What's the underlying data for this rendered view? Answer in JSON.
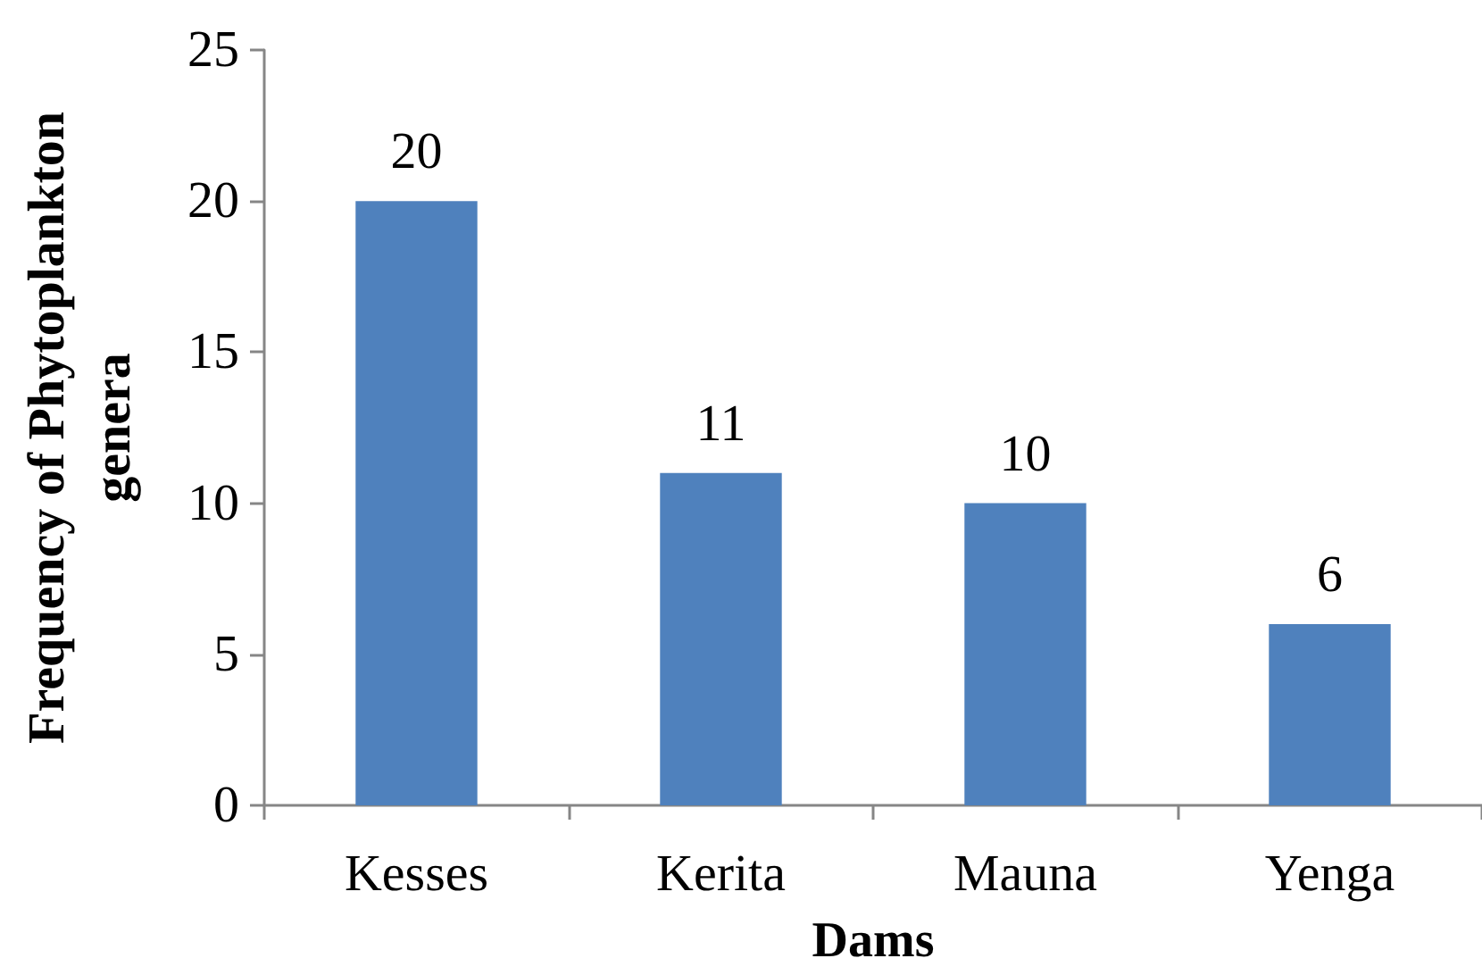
{
  "chart_data": {
    "type": "bar",
    "xlabel": "Dams",
    "ylabel": "Frequency of Phytoplankton genera",
    "categories": [
      "Kesses",
      "Kerita",
      "Mauna",
      "Yenga"
    ],
    "values": [
      20,
      11,
      10,
      6
    ],
    "color": "#4f81bd",
    "ylim": [
      0,
      25
    ],
    "yticks": [
      0,
      5,
      10,
      15,
      20,
      25
    ],
    "data_labels": true
  }
}
